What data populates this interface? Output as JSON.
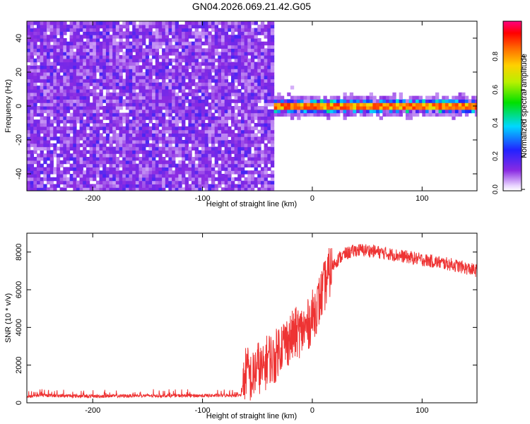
{
  "figure_title": "GN04.2026.069.21.42.G05",
  "chart_data": [
    {
      "type": "heatmap",
      "xlabel": "Height of straight line (km)",
      "ylabel": "Frequency (Hz)",
      "xlim": [
        -260,
        150
      ],
      "ylim": [
        -50,
        50
      ],
      "x_ticks": [
        -200,
        -100,
        0,
        100
      ],
      "y_ticks": [
        -40,
        -20,
        0,
        20,
        40
      ],
      "colorbar": {
        "label": "Normalized spectral amplitude",
        "range": [
          0,
          1
        ],
        "ticks": [
          "0.0",
          "0.2",
          "0.4",
          "0.6",
          "0.8"
        ],
        "colormap": "rainbow (purple → blue → cyan → green → yellow → orange → red → magenta)"
      },
      "regions": [
        {
          "x_range": [
            -260,
            -37
          ],
          "pattern": "broadband noise filling all frequencies",
          "amplitude": [
            0.05,
            0.15
          ]
        },
        {
          "x_range": [
            -37,
            150
          ],
          "pattern": "narrow line centered at 0 Hz",
          "half_width_hz": [
            3,
            6
          ],
          "peak_amplitude": 0.95
        }
      ]
    },
    {
      "type": "line",
      "xlabel": "Height of straight line (km)",
      "ylabel": "SNR (10 * v/v)",
      "xlim": [
        -260,
        150
      ],
      "ylim": [
        0,
        9000
      ],
      "x_ticks": [
        -200,
        -100,
        0,
        100
      ],
      "y_ticks": [
        0,
        2000,
        4000,
        6000,
        8000
      ],
      "line_color": "#ee3333",
      "series": [
        {
          "x": [
            -260,
            -250,
            -200,
            -150,
            -100,
            -65,
            -60,
            -55,
            -50,
            -45,
            -40,
            -35,
            -30,
            -25,
            -20,
            -15,
            -10,
            -5,
            0,
            5,
            10,
            15,
            20,
            25,
            30,
            40,
            50,
            60,
            70,
            80,
            90,
            100,
            110,
            120,
            130,
            140,
            150
          ],
          "y": [
            300,
            400,
            350,
            380,
            380,
            400,
            1800,
            1200,
            2000,
            1600,
            2500,
            2200,
            3000,
            3200,
            3400,
            3700,
            3800,
            4000,
            4600,
            5200,
            6000,
            6800,
            7400,
            7700,
            7900,
            8100,
            8100,
            8000,
            7900,
            7800,
            7700,
            7600,
            7500,
            7400,
            7300,
            7150,
            7000
          ]
        }
      ]
    }
  ]
}
